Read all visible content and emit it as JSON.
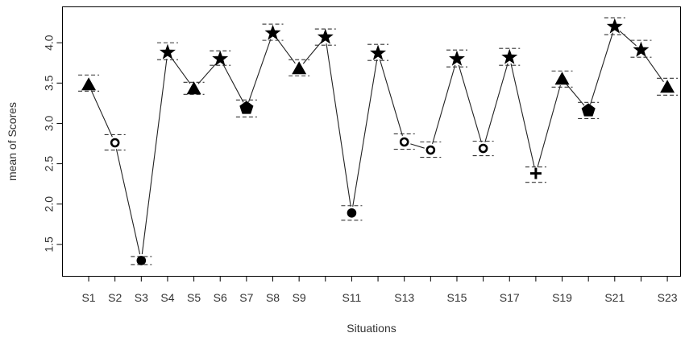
{
  "chart_data": {
    "type": "line",
    "title": "",
    "xlabel": "Situations",
    "ylabel": "mean of Scores",
    "x": [
      1,
      2,
      3,
      4,
      5,
      6,
      7,
      8,
      9,
      10,
      11,
      12,
      13,
      14,
      15,
      16,
      17,
      18,
      19,
      20,
      21,
      22,
      23
    ],
    "xticks_labeled": [
      1,
      2,
      3,
      4,
      5,
      6,
      7,
      8,
      9,
      11,
      13,
      15,
      17,
      19,
      21,
      23
    ],
    "xtick_labels": [
      "S1",
      "S2",
      "S3",
      "S4",
      "S5",
      "S6",
      "S7",
      "S8",
      "S9",
      "S11",
      "S13",
      "S15",
      "S17",
      "S19",
      "S21",
      "S23"
    ],
    "yticks": [
      1.5,
      2.0,
      2.5,
      3.0,
      3.5,
      4.0
    ],
    "ytick_labels": [
      "1.5",
      "2.0",
      "2.5",
      "3.0",
      "3.5",
      "4.0"
    ],
    "xlim": [
      0,
      23.5
    ],
    "ylim": [
      1.11,
      4.45
    ],
    "grid": false,
    "legend": "none",
    "series": [
      {
        "values": [
          3.48,
          2.76,
          1.3,
          3.88,
          3.43,
          3.8,
          3.19,
          4.12,
          3.68,
          4.07,
          1.89,
          3.87,
          2.77,
          2.67,
          3.8,
          2.69,
          3.82,
          2.38,
          3.55,
          3.16,
          4.2,
          3.91,
          3.45
        ],
        "upper": [
          3.6,
          2.86,
          1.35,
          4.0,
          3.51,
          3.9,
          3.29,
          4.23,
          3.79,
          4.17,
          1.98,
          3.98,
          2.87,
          2.77,
          3.91,
          2.78,
          3.93,
          2.46,
          3.65,
          3.26,
          4.31,
          4.03,
          3.56
        ],
        "lower": [
          3.4,
          2.67,
          1.25,
          3.79,
          3.36,
          3.72,
          3.08,
          4.03,
          3.59,
          3.97,
          1.8,
          3.78,
          2.68,
          2.58,
          3.7,
          2.6,
          3.72,
          2.27,
          3.45,
          3.06,
          4.1,
          3.82,
          3.35
        ],
        "markers": [
          "triangle",
          "open-circle",
          "filled-circle",
          "star",
          "triangle",
          "star",
          "pentagon",
          "star",
          "triangle",
          "star",
          "filled-circle",
          "star",
          "open-circle",
          "open-circle",
          "star",
          "open-circle",
          "star",
          "plus",
          "triangle",
          "pentagon",
          "star",
          "star",
          "triangle"
        ]
      }
    ],
    "colors": {
      "line": "#222222",
      "marker": "#000000",
      "error_bar": "#333333",
      "frame": "#000000"
    }
  }
}
